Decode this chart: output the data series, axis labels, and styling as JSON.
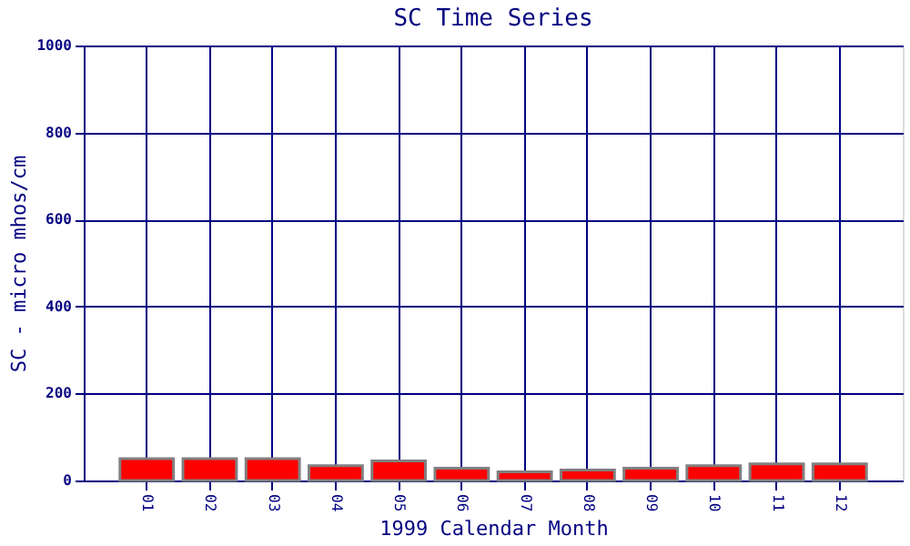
{
  "chart_data": {
    "type": "bar",
    "title": "SC Time Series",
    "xlabel": "1999 Calendar Month",
    "ylabel": "SC - micro mhos/cm",
    "categories": [
      "01",
      "02",
      "03",
      "04",
      "05",
      "06",
      "07",
      "08",
      "09",
      "10",
      "11",
      "12"
    ],
    "values": [
      50,
      50,
      50,
      34,
      45,
      28,
      20,
      24,
      28,
      34,
      38,
      38
    ],
    "color": "#ff0000",
    "ylim": [
      0,
      1000
    ],
    "yticks": [
      0,
      200,
      400,
      600,
      800,
      1000
    ],
    "grid": true
  }
}
